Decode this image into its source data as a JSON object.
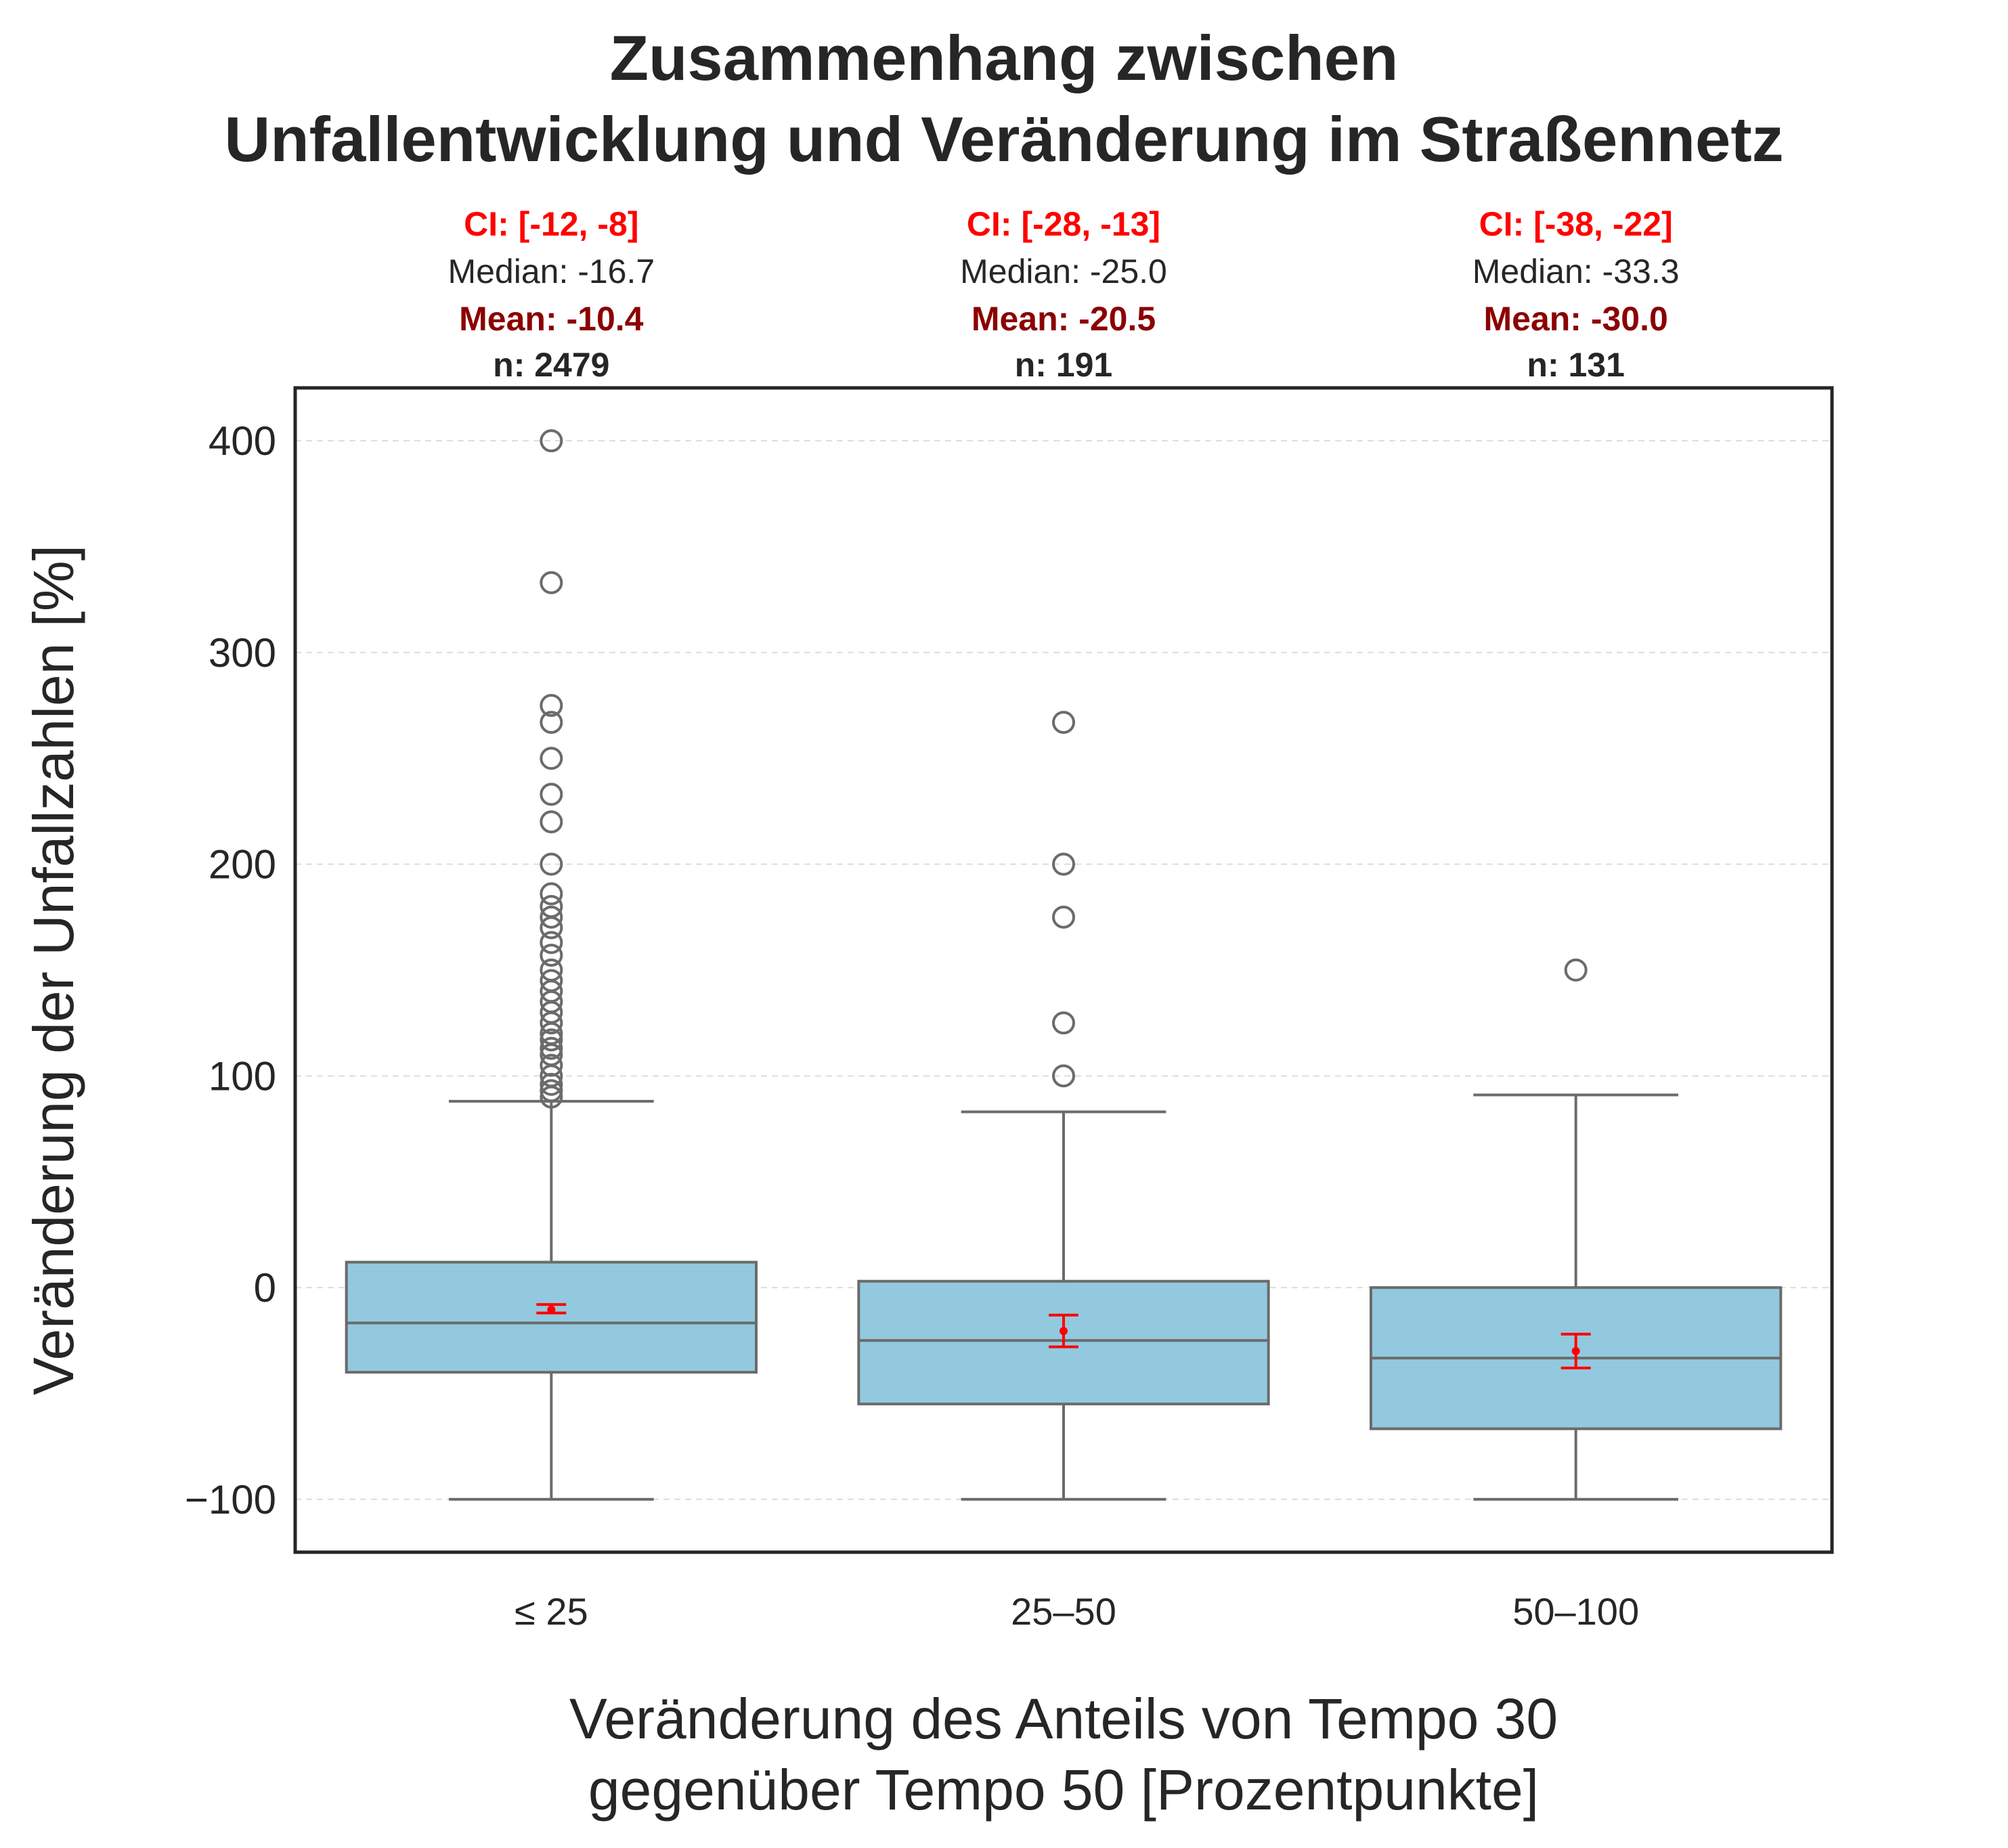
{
  "chart_data": {
    "type": "box",
    "title_lines": [
      "Zusammenhang zwischen",
      "Unfallentwicklung und Veränderung im Straßennetz"
    ],
    "xlabel_lines": [
      "Veränderung des Anteils von Tempo 30",
      "gegenüber Tempo 50 [Prozentpunkte]"
    ],
    "ylabel": "Veränderung der Unfallzahlen [%]",
    "ylim": [
      -125,
      425
    ],
    "yticks": [
      -100,
      0,
      100,
      200,
      300,
      400
    ],
    "ytick_labels": [
      "−100",
      "0",
      "100",
      "200",
      "300",
      "400"
    ],
    "grid": "y-dashed",
    "categories": [
      "≤ 25",
      "25–50",
      "50–100"
    ],
    "colors": {
      "box_fill": "#92c9df",
      "box_edge": "#6b6b6b",
      "ci": "#ff0000",
      "mean_text": "#8b0000",
      "grid": "#dddddd",
      "frame": "#262626"
    },
    "groups": [
      {
        "category": "≤ 25",
        "whisker_low": -100,
        "q1": -40,
        "median": -16.7,
        "q3": 12,
        "whisker_high": 88,
        "mean": -10.4,
        "ci": [
          -12,
          -8
        ],
        "outliers": [
          90,
          93,
          96,
          100,
          105,
          110,
          113,
          117,
          120,
          125,
          130,
          135,
          140,
          145,
          150,
          157,
          163,
          170,
          175,
          180,
          186,
          200,
          220,
          233,
          250,
          267,
          275,
          333,
          400
        ],
        "annotation": {
          "ci_text": "CI: [-12, -8]",
          "median_text": "Median: -16.7",
          "mean_text": "Mean: -10.4",
          "n_text": "n: 2479"
        }
      },
      {
        "category": "25–50",
        "whisker_low": -100,
        "q1": -55,
        "median": -25,
        "q3": 3,
        "whisker_high": 83,
        "mean": -20.5,
        "ci": [
          -28,
          -13
        ],
        "outliers": [
          100,
          125,
          175,
          200,
          267
        ],
        "annotation": {
          "ci_text": "CI: [-28, -13]",
          "median_text": "Median: -25.0",
          "mean_text": "Mean: -20.5",
          "n_text": "n: 191"
        }
      },
      {
        "category": "50–100",
        "whisker_low": -100,
        "q1": -66.7,
        "median": -33.3,
        "q3": 0,
        "whisker_high": 91,
        "mean": -30.0,
        "ci": [
          -38,
          -22
        ],
        "outliers": [
          150
        ],
        "annotation": {
          "ci_text": "CI: [-38, -22]",
          "median_text": "Median: -33.3",
          "mean_text": "Mean: -30.0",
          "n_text": "n: 131"
        }
      }
    ]
  }
}
